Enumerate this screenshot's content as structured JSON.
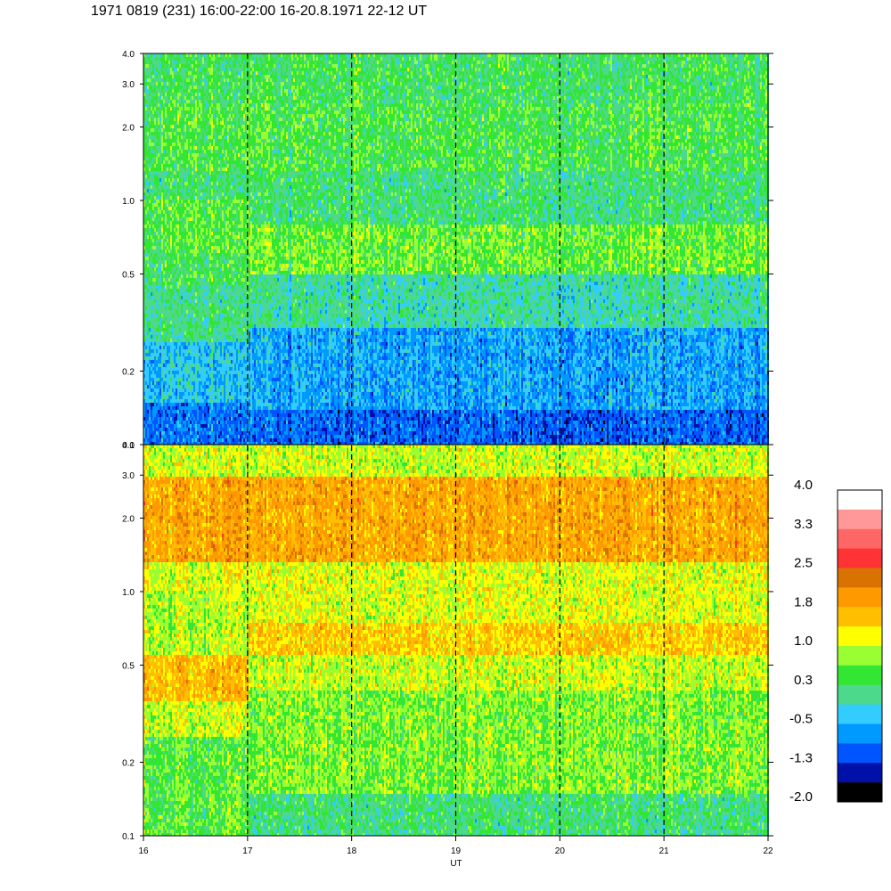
{
  "title": "1971 0819 (231) 16:00-22:00 16-20.8.1971  22-12 UT",
  "chart_data": {
    "type": "heatmap",
    "title": "1971 0819 (231) 16:00-22:00 16-20.8.1971  22-12 UT",
    "xlabel": "UT",
    "xlim": [
      16,
      22
    ],
    "x_ticks": [
      "16",
      "17",
      "18",
      "19",
      "20",
      "21",
      "22"
    ],
    "dashed_hour_markers": [
      17,
      18,
      19,
      20,
      21
    ],
    "panels": [
      {
        "name": "upper",
        "yscale": "log",
        "ylim": [
          0.1,
          4.0
        ],
        "y_ticks": [
          {
            "value": 4.0,
            "label": "4.0"
          },
          {
            "value": 3.0,
            "label": "3.0"
          },
          {
            "value": 2.0,
            "label": "2.0"
          },
          {
            "value": 1.0,
            "label": "1.0"
          },
          {
            "value": 0.5,
            "label": "0.5"
          },
          {
            "value": 0.2,
            "label": "0.2"
          },
          {
            "value": 0.1,
            "label": "0.1"
          }
        ],
        "bands": [
          {
            "from": 0.1,
            "to": 0.14,
            "level": -1.0
          },
          {
            "from": 0.14,
            "to": 0.3,
            "level": -0.6
          },
          {
            "from": 0.3,
            "to": 0.5,
            "level": 0.0
          },
          {
            "from": 0.5,
            "to": 0.8,
            "level": 0.6
          },
          {
            "from": 0.8,
            "to": 1.3,
            "level": 0.2
          },
          {
            "from": 1.3,
            "to": 2.5,
            "level": 0.4
          },
          {
            "from": 2.5,
            "to": 4.0,
            "level": 0.3
          }
        ],
        "early_section": {
          "x_to": 17,
          "bands": [
            {
              "from": 0.1,
              "to": 0.15,
              "level": -0.9
            },
            {
              "from": 0.15,
              "to": 0.26,
              "level": -0.4
            },
            {
              "from": 0.26,
              "to": 0.45,
              "level": 0.1
            },
            {
              "from": 0.45,
              "to": 0.6,
              "level": 0.3
            },
            {
              "from": 0.6,
              "to": 1.0,
              "level": 0.5
            }
          ]
        }
      },
      {
        "name": "lower",
        "yscale": "log",
        "ylim": [
          0.1,
          4.0
        ],
        "y_ticks": [
          {
            "value": 4.0,
            "label": "4.0"
          },
          {
            "value": 3.0,
            "label": "3.0"
          },
          {
            "value": 2.0,
            "label": "2.0"
          },
          {
            "value": 1.0,
            "label": "1.0"
          },
          {
            "value": 0.5,
            "label": "0.5"
          },
          {
            "value": 0.2,
            "label": "0.2"
          },
          {
            "value": 0.1,
            "label": "0.1"
          }
        ],
        "bands": [
          {
            "from": 0.1,
            "to": 0.15,
            "level": 0.2
          },
          {
            "from": 0.15,
            "to": 0.4,
            "level": 0.7
          },
          {
            "from": 0.4,
            "to": 0.55,
            "level": 1.0
          },
          {
            "from": 0.55,
            "to": 0.75,
            "level": 1.5
          },
          {
            "from": 0.75,
            "to": 1.3,
            "level": 1.1
          },
          {
            "from": 1.3,
            "to": 3.0,
            "level": 1.8
          },
          {
            "from": 3.0,
            "to": 4.0,
            "level": 1.0
          }
        ],
        "early_section": {
          "x_to": 17,
          "bands": [
            {
              "from": 0.1,
              "to": 0.25,
              "level": 0.5
            },
            {
              "from": 0.25,
              "to": 0.36,
              "level": 1.0
            },
            {
              "from": 0.36,
              "to": 0.55,
              "level": 1.6
            },
            {
              "from": 0.55,
              "to": 1.0,
              "level": 0.9
            }
          ]
        }
      }
    ],
    "colorbar": {
      "range": [
        -2.0,
        4.0
      ],
      "labels": [
        "4.0",
        "3.3",
        "2.5",
        "1.8",
        "1.0",
        "0.3",
        "-0.5",
        "-1.3",
        "-2.0"
      ],
      "colors_top_to_bottom": [
        "#ffffff",
        "#ff9999",
        "#ff6666",
        "#ff3333",
        "#d97200",
        "#ff9900",
        "#ffbf00",
        "#ffff00",
        "#99ff33",
        "#33e633",
        "#4dd98c",
        "#33ccff",
        "#0099ff",
        "#0055ff",
        "#0011aa",
        "#000000"
      ]
    }
  }
}
